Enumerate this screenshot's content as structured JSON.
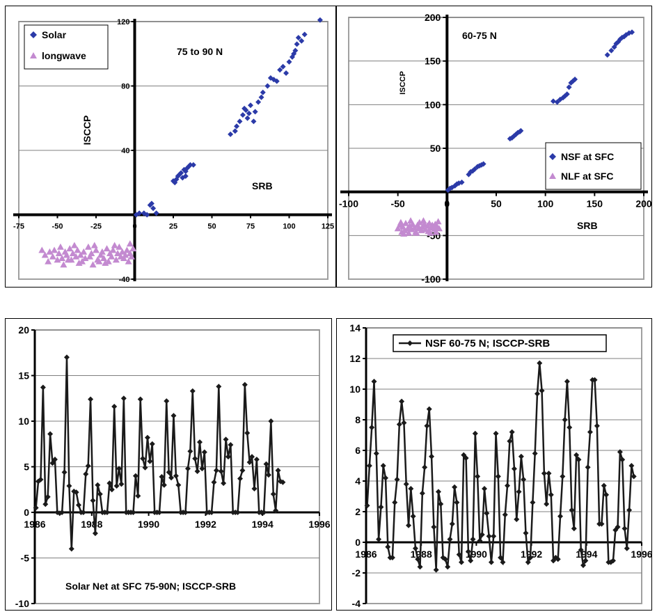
{
  "colors": {
    "solar": "#2b3aa8",
    "longwave": "#c38ad0",
    "line": "#1a1a1a",
    "grid": "#7f7f7f",
    "frame": "#a0a0a0"
  },
  "chart_data": [
    {
      "type": "scatter",
      "title": "75 to 90 N",
      "xlabel": "SRB",
      "ylabel": "ISCCP",
      "xlim": [
        -75,
        125
      ],
      "ylim": [
        -40,
        120
      ],
      "x_ticks": [
        "-75",
        "-50",
        "-25",
        "0",
        "25",
        "50",
        "75",
        "100",
        "125"
      ],
      "y_ticks": [
        "-40",
        "40",
        "80",
        "120"
      ],
      "legend_position": "top-left",
      "series": [
        {
          "name": "Solar",
          "marker": "diamond",
          "color_key": "solar",
          "points": [
            [
              1,
              0
            ],
            [
              3,
              1
            ],
            [
              6,
              1
            ],
            [
              8,
              0
            ],
            [
              10,
              6
            ],
            [
              11,
              7
            ],
            [
              12,
              4
            ],
            [
              14,
              1
            ],
            [
              25,
              21
            ],
            [
              27,
              22
            ],
            [
              28,
              24
            ],
            [
              30,
              26
            ],
            [
              31,
              23
            ],
            [
              32,
              28
            ],
            [
              33,
              27
            ],
            [
              34,
              29
            ],
            [
              35,
              30
            ],
            [
              36,
              31
            ],
            [
              38,
              31
            ],
            [
              26,
              20
            ],
            [
              29,
              25
            ],
            [
              33,
              24
            ],
            [
              62,
              50
            ],
            [
              65,
              52
            ],
            [
              66,
              55
            ],
            [
              68,
              58
            ],
            [
              70,
              62
            ],
            [
              71,
              66
            ],
            [
              72,
              65
            ],
            [
              73,
              60
            ],
            [
              74,
              63
            ],
            [
              75,
              68
            ],
            [
              77,
              58
            ],
            [
              78,
              64
            ],
            [
              80,
              70
            ],
            [
              82,
              73
            ],
            [
              83,
              76
            ],
            [
              86,
              80
            ],
            [
              88,
              85
            ],
            [
              90,
              84
            ],
            [
              92,
              83
            ],
            [
              94,
              90
            ],
            [
              96,
              92
            ],
            [
              98,
              88
            ],
            [
              100,
              95
            ],
            [
              102,
              98
            ],
            [
              103,
              100
            ],
            [
              104,
              102
            ],
            [
              105,
              106
            ],
            [
              106,
              110
            ],
            [
              108,
              108
            ],
            [
              110,
              112
            ],
            [
              120,
              121
            ]
          ]
        },
        {
          "name": "longwave",
          "marker": "triangle",
          "color_key": "longwave",
          "points": [
            [
              -55,
              -23
            ],
            [
              -53,
              -26
            ],
            [
              -52,
              -22
            ],
            [
              -50,
              -28
            ],
            [
              -49,
              -24
            ],
            [
              -48,
              -20
            ],
            [
              -47,
              -27
            ],
            [
              -45,
              -23
            ],
            [
              -44,
              -25
            ],
            [
              -42,
              -21
            ],
            [
              -41,
              -28
            ],
            [
              -40,
              -24
            ],
            [
              -38,
              -26
            ],
            [
              -37,
              -22
            ],
            [
              -36,
              -30
            ],
            [
              -35,
              -25
            ],
            [
              -33,
              -23
            ],
            [
              -32,
              -27
            ],
            [
              -30,
              -20
            ],
            [
              -29,
              -26
            ],
            [
              -28,
              -24
            ],
            [
              -27,
              -31
            ],
            [
              -25,
              -22
            ],
            [
              -24,
              -28
            ],
            [
              -22,
              -25
            ],
            [
              -21,
              -23
            ],
            [
              -20,
              -27
            ],
            [
              -18,
              -21
            ],
            [
              -17,
              -29
            ],
            [
              -16,
              -24
            ],
            [
              -15,
              -26
            ],
            [
              -14,
              -22
            ],
            [
              -12,
              -28
            ],
            [
              -11,
              -24
            ],
            [
              -10,
              -20
            ],
            [
              -9,
              -26
            ],
            [
              -8,
              -23
            ],
            [
              -7,
              -27
            ],
            [
              -6,
              -25
            ],
            [
              -5,
              -22
            ],
            [
              -4,
              -29
            ],
            [
              -3,
              -24
            ],
            [
              -2,
              -26
            ],
            [
              -1,
              -21
            ],
            [
              -58,
              -25
            ],
            [
              -56,
              -29
            ],
            [
              -46,
              -31
            ],
            [
              -39,
              -19
            ],
            [
              -34,
              -29
            ],
            [
              -26,
              -19
            ],
            [
              -19,
              -30
            ],
            [
              -13,
              -19
            ],
            [
              -3,
              -18
            ],
            [
              -60,
              -22
            ],
            [
              -43,
              -28
            ],
            [
              -23,
              -29
            ]
          ]
        }
      ]
    },
    {
      "type": "scatter",
      "title": "60-75 N",
      "xlabel": "SRB",
      "ylabel": "ISCCP",
      "xlim": [
        -100,
        200
      ],
      "ylim": [
        -100,
        200
      ],
      "x_ticks": [
        "-100",
        "-50",
        "0",
        "50",
        "100",
        "150",
        "200"
      ],
      "y_ticks": [
        "-100",
        "-50",
        "50",
        "100",
        "150",
        "200"
      ],
      "legend_position": "bottom-right",
      "series": [
        {
          "name": "NSF at SFC",
          "marker": "diamond",
          "color_key": "solar",
          "points": [
            [
              1,
              2
            ],
            [
              3,
              4
            ],
            [
              5,
              5
            ],
            [
              8,
              7
            ],
            [
              10,
              9
            ],
            [
              12,
              10
            ],
            [
              15,
              11
            ],
            [
              22,
              20
            ],
            [
              24,
              23
            ],
            [
              26,
              24
            ],
            [
              28,
              26
            ],
            [
              31,
              29
            ],
            [
              33,
              30
            ],
            [
              35,
              31
            ],
            [
              37,
              32
            ],
            [
              64,
              61
            ],
            [
              66,
              62
            ],
            [
              68,
              64
            ],
            [
              70,
              66
            ],
            [
              72,
              68
            ],
            [
              74,
              69
            ],
            [
              75,
              70
            ],
            [
              108,
              104
            ],
            [
              112,
              103
            ],
            [
              115,
              106
            ],
            [
              118,
              108
            ],
            [
              120,
              110
            ],
            [
              122,
              112
            ],
            [
              124,
              120
            ],
            [
              126,
              125
            ],
            [
              128,
              127
            ],
            [
              130,
              129
            ],
            [
              163,
              157
            ],
            [
              167,
              162
            ],
            [
              170,
              166
            ],
            [
              172,
              170
            ],
            [
              174,
              172
            ],
            [
              176,
              175
            ],
            [
              178,
              177
            ],
            [
              180,
              178
            ],
            [
              182,
              180
            ],
            [
              185,
              182
            ],
            [
              188,
              183
            ]
          ]
        },
        {
          "name": "NLF at SFC",
          "marker": "triangle",
          "color_key": "longwave",
          "points": [
            [
              -50,
              -42
            ],
            [
              -48,
              -38
            ],
            [
              -46,
              -46
            ],
            [
              -45,
              -40
            ],
            [
              -43,
              -44
            ],
            [
              -42,
              -36
            ],
            [
              -40,
              -42
            ],
            [
              -39,
              -47
            ],
            [
              -38,
              -39
            ],
            [
              -36,
              -43
            ],
            [
              -35,
              -37
            ],
            [
              -33,
              -41
            ],
            [
              -32,
              -46
            ],
            [
              -30,
              -38
            ],
            [
              -29,
              -42
            ],
            [
              -28,
              -35
            ],
            [
              -26,
              -44
            ],
            [
              -25,
              -40
            ],
            [
              -23,
              -37
            ],
            [
              -22,
              -43
            ],
            [
              -20,
              -39
            ],
            [
              -19,
              -45
            ],
            [
              -18,
              -36
            ],
            [
              -16,
              -41
            ],
            [
              -15,
              -38
            ],
            [
              -13,
              -43
            ],
            [
              -12,
              -37
            ],
            [
              -10,
              -40
            ],
            [
              -9,
              -34
            ],
            [
              -8,
              -42
            ],
            [
              -47,
              -35
            ],
            [
              -44,
              -48
            ],
            [
              -37,
              -33
            ],
            [
              -31,
              -47
            ],
            [
              -24,
              -33
            ],
            [
              -17,
              -47
            ],
            [
              -11,
              -46
            ]
          ]
        }
      ]
    },
    {
      "type": "line",
      "title": "Solar Net at SFC 75-90N; ISCCP-SRB",
      "xlabel": "",
      "ylabel": "",
      "xlim": [
        1986,
        1996
      ],
      "ylim": [
        -10,
        20
      ],
      "x_ticks": [
        "1986",
        "1988",
        "1990",
        "1992",
        "1994",
        "1996"
      ],
      "y_ticks": [
        "-10",
        "-5",
        "0",
        "5",
        "10",
        "15",
        "20"
      ],
      "series": [
        {
          "name": "",
          "marker": "diamond",
          "start": 1986.04,
          "step": 0.0834,
          "values": [
            0.5,
            3.4,
            3.6,
            13.7,
            0.9,
            1.7,
            8.6,
            5.4,
            5.8,
            0,
            -0.1,
            0,
            4.4,
            17,
            2.9,
            -4,
            2.3,
            2.2,
            0.8,
            0,
            0,
            4.2,
            5.1,
            12.4,
            1.3,
            -2.3,
            3,
            2,
            0,
            0,
            0,
            3.2,
            2.5,
            11.6,
            2.9,
            4.8,
            3.1,
            12.5,
            0,
            0,
            0,
            0,
            4,
            1.8,
            12.4,
            5.9,
            4.9,
            8.2,
            5.6,
            7.5,
            0,
            0,
            0,
            3.9,
            3,
            12.2,
            4.4,
            3.8,
            10.6,
            4,
            3,
            0,
            0,
            0,
            4.8,
            6.7,
            13.3,
            5.9,
            4.5,
            7.7,
            4.8,
            6.6,
            0,
            0,
            0,
            3.3,
            4.6,
            13.8,
            4.5,
            3.2,
            8,
            6.1,
            7.4,
            0,
            0,
            0,
            3.7,
            4.6,
            14,
            8.7,
            5.5,
            6.1,
            2.6,
            5.8,
            0,
            0,
            0,
            5.3,
            4.1,
            10,
            2,
            0.2,
            4.6,
            3.4,
            3.3
          ]
        }
      ]
    },
    {
      "type": "line",
      "title": "",
      "xlabel": "",
      "ylabel": "",
      "xlim": [
        1986,
        1996
      ],
      "ylim": [
        -4,
        14
      ],
      "x_ticks": [
        "1986",
        "1988",
        "1990",
        "1992",
        "1994",
        "1996"
      ],
      "y_ticks": [
        "-4",
        "-2",
        "0",
        "2",
        "4",
        "6",
        "8",
        "10",
        "12",
        "14"
      ],
      "legend_position": "top",
      "series": [
        {
          "name": "NSF 60-75 N; ISCCP-SRB",
          "marker": "diamond",
          "start": 1986.04,
          "step": 0.0834,
          "values": [
            2.4,
            5,
            7.5,
            10.5,
            5.8,
            0.2,
            2.3,
            5,
            4.2,
            -0.3,
            -1,
            -1,
            2.6,
            4.1,
            7.7,
            9.2,
            7.8,
            3.8,
            1.1,
            3.5,
            1.7,
            -0.4,
            -1.1,
            -1.6,
            3.2,
            4.9,
            7.6,
            8.7,
            5.6,
            1,
            -1.8,
            3.3,
            2.5,
            -1,
            -1.1,
            -1.6,
            0.2,
            1.2,
            3.6,
            2.6,
            -0.8,
            -1.3,
            5.7,
            5.5,
            -0.6,
            -1.2,
            0.2,
            7.1,
            4.3,
            0.1,
            0.5,
            3.5,
            1.9,
            0.4,
            -1.3,
            0.4,
            7.1,
            4.3,
            -1,
            -1.3,
            1.8,
            3.7,
            6.6,
            7.2,
            4.8,
            1.5,
            3.3,
            5.6,
            4.1,
            0.6,
            -1.3,
            -1,
            2.6,
            5.8,
            9.7,
            11.7,
            9.9,
            4.5,
            2.5,
            4.5,
            3.1,
            -1.2,
            -1,
            -1.1,
            1.7,
            4.3,
            8,
            10.5,
            7.5,
            2.1,
            0.9,
            5.7,
            5.4,
            -0.5,
            -1.5,
            -1.2,
            4.9,
            7.2,
            10.6,
            10.6,
            7.6,
            1.2,
            1.2,
            3.7,
            3.1,
            -1.3,
            -1.3,
            -1.2,
            0.8,
            1,
            5.9,
            5.4,
            0.9,
            -0.4,
            2.1,
            5,
            4.3
          ]
        }
      ]
    }
  ]
}
